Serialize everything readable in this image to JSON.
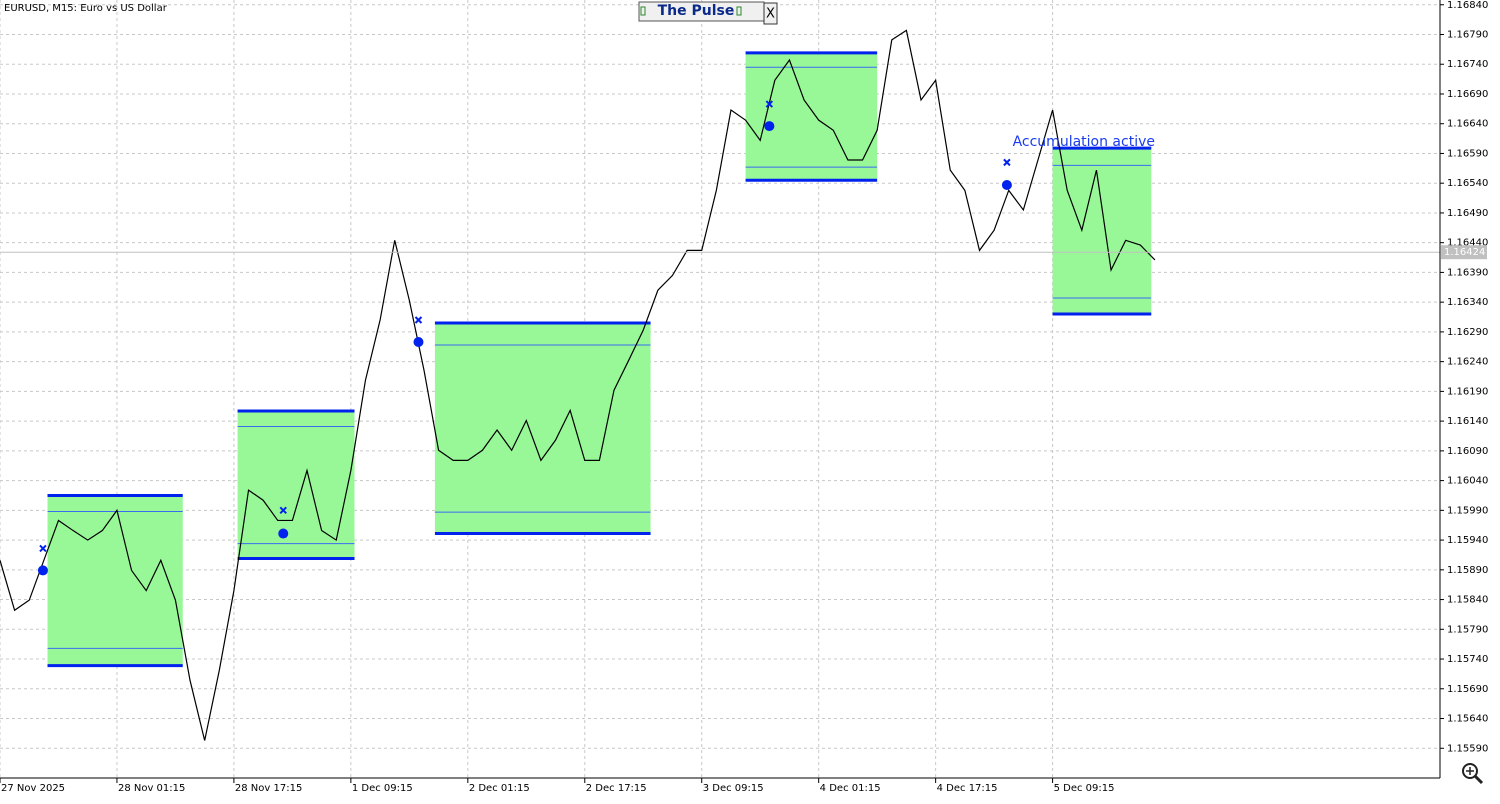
{
  "chart_data": {
    "type": "line",
    "title": "EURUSD, M15:  Euro vs US Dollar",
    "xlim": [
      0,
      788
    ],
    "ylim": [
      1.1554,
      1.16848
    ],
    "xticks": [
      {
        "value": 0,
        "label": "27 Nov 2025"
      },
      {
        "value": 64,
        "label": "28 Nov 01:15"
      },
      {
        "value": 128,
        "label": "28 Nov 17:15"
      },
      {
        "value": 192,
        "label": "1 Dec 09:15"
      },
      {
        "value": 256,
        "label": "2 Dec 01:15"
      },
      {
        "value": 320,
        "label": "2 Dec 17:15"
      },
      {
        "value": 384,
        "label": "3 Dec 09:15"
      },
      {
        "value": 448,
        "label": "4 Dec 01:15"
      },
      {
        "value": 512,
        "label": "4 Dec 17:15"
      },
      {
        "value": 576,
        "label": "5 Dec 09:15"
      }
    ],
    "yticks": [
      {
        "value": 1.1684,
        "label": "1.16840"
      },
      {
        "value": 1.1679,
        "label": "1.16790"
      },
      {
        "value": 1.1674,
        "label": "1.16740"
      },
      {
        "value": 1.1669,
        "label": "1.16690"
      },
      {
        "value": 1.1664,
        "label": "1.16640"
      },
      {
        "value": 1.1659,
        "label": "1.16590"
      },
      {
        "value": 1.1654,
        "label": "1.16540"
      },
      {
        "value": 1.1649,
        "label": "1.16490"
      },
      {
        "value": 1.1644,
        "label": "1.16440"
      },
      {
        "value": 1.1639,
        "label": "1.16390"
      },
      {
        "value": 1.1634,
        "label": "1.16340"
      },
      {
        "value": 1.1629,
        "label": "1.16290"
      },
      {
        "value": 1.1624,
        "label": "1.16240"
      },
      {
        "value": 1.1619,
        "label": "1.16190"
      },
      {
        "value": 1.1614,
        "label": "1.16140"
      },
      {
        "value": 1.1609,
        "label": "1.16090"
      },
      {
        "value": 1.1604,
        "label": "1.16040"
      },
      {
        "value": 1.1599,
        "label": "1.15990"
      },
      {
        "value": 1.1594,
        "label": "1.15940"
      },
      {
        "value": 1.1589,
        "label": "1.15890"
      },
      {
        "value": 1.1584,
        "label": "1.15840"
      },
      {
        "value": 1.1579,
        "label": "1.15790"
      },
      {
        "value": 1.1574,
        "label": "1.15740"
      },
      {
        "value": 1.1569,
        "label": "1.15690"
      },
      {
        "value": 1.1564,
        "label": "1.15640"
      },
      {
        "value": 1.1559,
        "label": "1.15590"
      }
    ],
    "grid": true,
    "x": [
      0,
      8,
      16,
      24,
      32,
      40,
      48,
      56,
      64,
      72,
      80,
      88,
      96,
      104,
      112,
      120,
      128,
      136,
      144,
      152,
      160,
      168,
      176,
      184,
      192,
      200,
      208,
      216,
      224,
      232,
      240,
      248,
      256,
      264,
      272,
      280,
      288,
      296,
      304,
      312,
      320,
      328,
      336,
      344,
      352,
      360,
      368,
      376,
      384,
      392,
      400,
      408,
      416,
      424,
      432,
      440,
      448,
      456,
      464,
      472,
      480,
      488,
      496,
      504,
      512,
      520,
      528,
      536,
      544,
      552,
      560,
      568,
      576,
      584,
      592,
      600,
      608,
      616,
      624,
      632
    ],
    "series": [
      {
        "color": "#000000",
        "values": [
          1.15906,
          1.15822,
          1.15839,
          1.15906,
          1.15973,
          1.15956,
          1.1594,
          1.15956,
          1.1599,
          1.15889,
          1.15855,
          1.15906,
          1.15839,
          1.15704,
          1.15603,
          1.15721,
          1.15855,
          1.16024,
          1.16007,
          1.15973,
          1.15973,
          1.16057,
          1.15956,
          1.1594,
          1.16057,
          1.16209,
          1.1631,
          1.16444,
          1.16343,
          1.16226,
          1.16091,
          1.16074,
          1.16074,
          1.16091,
          1.16125,
          1.16091,
          1.16141,
          1.16074,
          1.16108,
          1.16158,
          1.16074,
          1.16074,
          1.16192,
          1.16242,
          1.16293,
          1.1636,
          1.16385,
          1.16427,
          1.16427,
          1.16528,
          1.16663,
          1.16646,
          1.16612,
          1.16713,
          1.16747,
          1.1668,
          1.16646,
          1.16629,
          1.16579,
          1.16579,
          1.16629,
          1.16781,
          1.16797,
          1.1668,
          1.16713,
          1.16562,
          1.16528,
          1.16427,
          1.16461,
          1.16528,
          1.16495,
          1.16579,
          1.16663,
          1.16528,
          1.16461,
          1.16562,
          1.16394,
          1.16444,
          1.16436,
          1.16411
        ]
      }
    ],
    "zones": [
      {
        "x_start": 26,
        "x_end": 100,
        "top": 1.16015,
        "bottom": 1.15729,
        "inner_top": 1.15988,
        "inner_bottom": 1.15758
      },
      {
        "x_start": 130,
        "x_end": 194,
        "top": 1.16157,
        "bottom": 1.15909,
        "inner_top": 1.16131,
        "inner_bottom": 1.15934
      },
      {
        "x_start": 238,
        "x_end": 356,
        "top": 1.16305,
        "bottom": 1.15951,
        "inner_top": 1.16268,
        "inner_bottom": 1.15987
      },
      {
        "x_start": 408,
        "x_end": 480,
        "top": 1.16759,
        "bottom": 1.16545,
        "inner_top": 1.16735,
        "inner_bottom": 1.16567
      },
      {
        "x_start": 576,
        "x_end": 630,
        "top": 1.16599,
        "bottom": 1.1632,
        "inner_top": 1.1657,
        "inner_bottom": 1.16347
      }
    ],
    "signals": {
      "x": [
        23.5,
        155,
        229,
        421,
        551
      ],
      "dot": [
        1.15889,
        1.15951,
        1.16273,
        1.16636,
        1.16537
      ],
      "cross": [
        1.15926,
        1.1599,
        1.1631,
        1.16673,
        1.16575
      ]
    },
    "current_price": 1.16424,
    "annotations": [
      {
        "text": "Accumulation active",
        "x": 576,
        "y": 1.16609
      }
    ]
  },
  "panel": {
    "title": "The Pulse",
    "close": "X"
  }
}
